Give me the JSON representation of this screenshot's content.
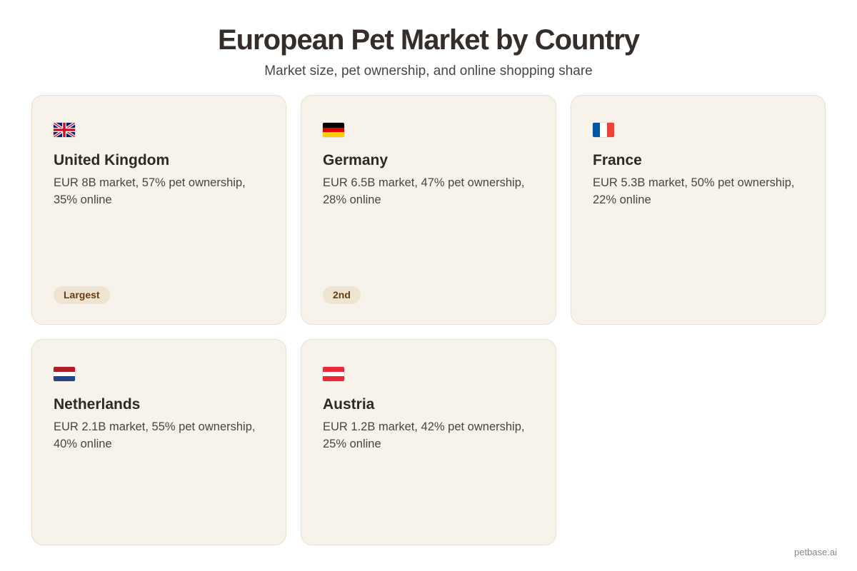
{
  "header": {
    "title": "European Pet Market by Country",
    "subtitle": "Market size, pet ownership, and online shopping share"
  },
  "cards": [
    {
      "country": "United Kingdom",
      "flag_icon": "uk-flag-icon",
      "description": "EUR 8B market, 57% pet ownership, 35% online",
      "badge": "Largest"
    },
    {
      "country": "Germany",
      "flag_icon": "germany-flag-icon",
      "description": "EUR 6.5B market, 47% pet ownership, 28% online",
      "badge": "2nd"
    },
    {
      "country": "France",
      "flag_icon": "france-flag-icon",
      "description": "EUR 5.3B market, 50% pet ownership, 22% online"
    },
    {
      "country": "Netherlands",
      "flag_icon": "netherlands-flag-icon",
      "description": "EUR 2.1B market, 55% pet ownership, 40% online"
    },
    {
      "country": "Austria",
      "flag_icon": "austria-flag-icon",
      "description": "EUR 1.2B market, 42% pet ownership, 25% online"
    }
  ],
  "footer": {
    "watermark": "petbase.ai"
  }
}
